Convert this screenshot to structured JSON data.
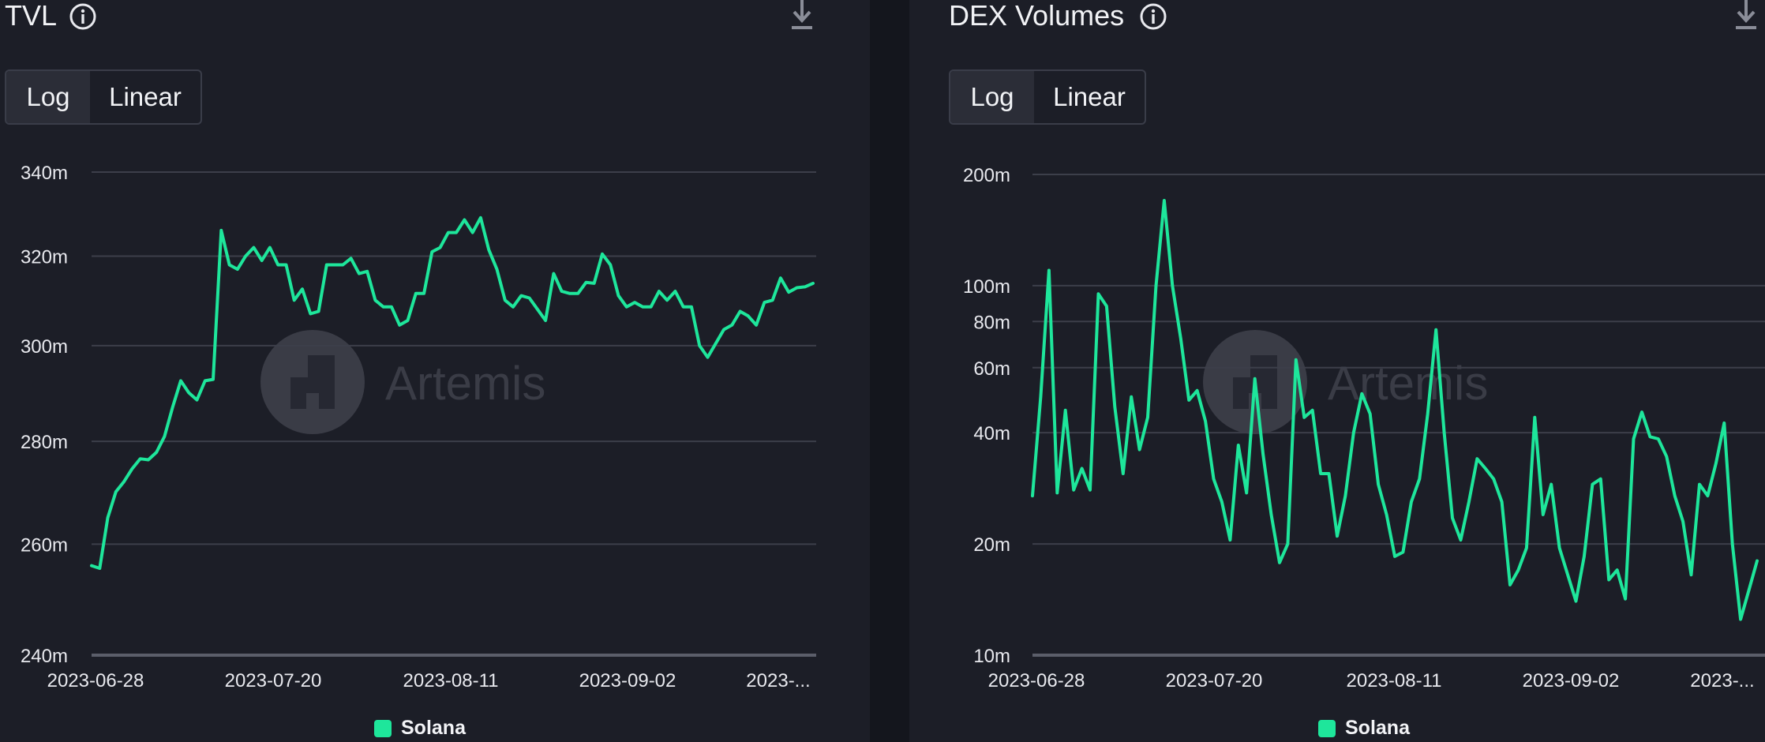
{
  "colors": {
    "background": "#1c1e27",
    "series": "#1ee69b",
    "grid": "#3c3f4a",
    "axis_text": "#e8e9ee",
    "watermark": "#3a3c46"
  },
  "watermark_text": "Artemis",
  "charts": {
    "tvl": {
      "title": "TVL",
      "toggle": {
        "log": "Log",
        "linear": "Linear",
        "selected": "Log"
      },
      "legend": "Solana"
    },
    "dex": {
      "title": "DEX Volumes",
      "toggle": {
        "log": "Log",
        "linear": "Linear",
        "selected": "Log"
      },
      "legend": "Solana"
    }
  },
  "chart_data": [
    {
      "type": "line",
      "title": "TVL",
      "scale": "log",
      "ylim": [
        240,
        340
      ],
      "y_unit": "m",
      "y_ticks": [
        240,
        260,
        280,
        300,
        320,
        340
      ],
      "y_tick_labels": [
        "240m",
        "260m",
        "280m",
        "300m",
        "320m",
        "340m"
      ],
      "x_tick_labels": [
        "2023-06-28",
        "2023-07-20",
        "2023-08-11",
        "2023-09-02",
        "2023-..."
      ],
      "x_range": [
        "2023-06-28",
        "2023-09-28"
      ],
      "grid": true,
      "legend_position": "bottom-center",
      "series": [
        {
          "name": "Solana",
          "color": "#1ee69b",
          "values": [
            256,
            255.5,
            265,
            270,
            272,
            274.5,
            276.5,
            276.3,
            277.8,
            281,
            287,
            292.5,
            290,
            288.5,
            292.5,
            292.8,
            326,
            318,
            317,
            320,
            322,
            319,
            322,
            318,
            318,
            310,
            312.5,
            307,
            307.5,
            318,
            318,
            318,
            319.5,
            316,
            316.5,
            310,
            308.5,
            308.5,
            304.5,
            305.5,
            311.5,
            311.5,
            321,
            322,
            325.5,
            325.5,
            328.5,
            325.5,
            329,
            321.5,
            317,
            310,
            308.5,
            311,
            310.5,
            308,
            305.5,
            316,
            312,
            311.5,
            311.5,
            314,
            313.8,
            320.5,
            318,
            311,
            308.5,
            309.5,
            308.5,
            308.5,
            312,
            310,
            312,
            308.5,
            308.5,
            300,
            297.5,
            300.5,
            303.5,
            304.5,
            307.5,
            306.5,
            304.5,
            309.5,
            310,
            315,
            311.8,
            312.8,
            313,
            313.8
          ]
        }
      ]
    },
    {
      "type": "line",
      "title": "DEX Volumes",
      "scale": "log",
      "ylim": [
        10,
        200
      ],
      "y_unit": "m",
      "y_ticks": [
        10,
        20,
        40,
        60,
        80,
        100,
        200
      ],
      "y_tick_labels": [
        "10m",
        "20m",
        "40m",
        "60m",
        "80m",
        "100m",
        "200m"
      ],
      "x_tick_labels": [
        "2023-06-28",
        "2023-07-20",
        "2023-08-11",
        "2023-09-02",
        "2023-..."
      ],
      "x_range": [
        "2023-06-28",
        "2023-09-28"
      ],
      "grid": true,
      "legend_position": "bottom-center",
      "series": [
        {
          "name": "Solana",
          "color": "#1ee69b",
          "values": [
            27,
            50,
            110,
            27.5,
            46,
            28,
            32,
            28,
            95,
            88,
            47,
            31,
            50,
            36,
            44,
            100,
            170,
            100,
            72,
            49,
            52,
            43,
            30,
            26,
            20.5,
            37,
            27.5,
            56,
            35,
            24,
            17.8,
            20,
            63,
            44,
            46,
            31,
            31,
            21,
            27,
            40,
            51,
            45,
            29,
            24,
            18.5,
            19,
            26,
            30,
            45,
            76,
            40,
            23.5,
            20.5,
            26,
            34,
            32,
            30,
            26,
            15.5,
            17,
            19.5,
            44,
            24,
            29,
            19.5,
            16.5,
            14,
            18.5,
            29,
            30,
            16,
            17,
            14.2,
            38.5,
            45.5,
            39,
            38.5,
            34.5,
            27,
            23,
            16.5,
            29,
            27,
            33,
            42.5,
            20,
            12.5,
            15,
            18
          ]
        }
      ]
    }
  ]
}
